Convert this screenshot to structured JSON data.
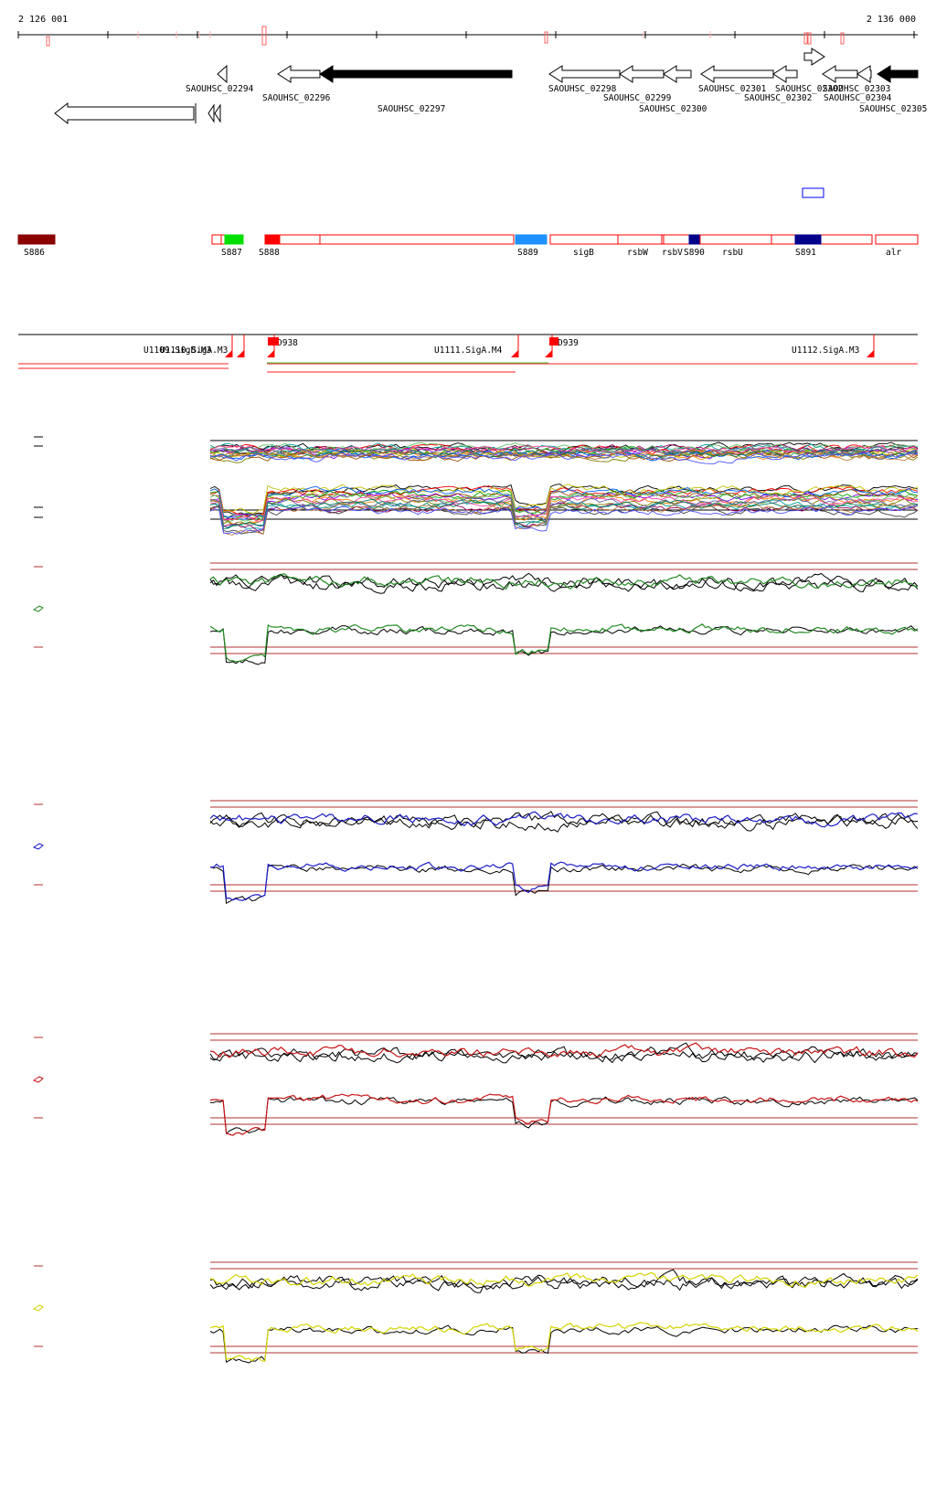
{
  "coordinates": {
    "start_label": "2 126 001",
    "end_label": "2 136 000"
  },
  "genes": [
    {
      "label": "SAOUHSC_02294",
      "filled": false
    },
    {
      "label": "SAOUHSC_02296",
      "filled": false
    },
    {
      "label": "SAOUHSC_02297",
      "filled": true
    },
    {
      "label": "SAOUHSC_02298",
      "filled": false
    },
    {
      "label": "SAOUHSC_02299",
      "filled": false
    },
    {
      "label": "SAOUHSC_02300",
      "filled": false
    },
    {
      "label": "SAOUHSC_02301",
      "filled": false
    },
    {
      "label": "SAOUHSC_02302",
      "filled": false
    },
    {
      "label": "SAOUHSC_02303",
      "filled": false
    },
    {
      "label": "SAOUHSC_02304",
      "filled": false
    },
    {
      "label": "SAOUHSC_02305",
      "filled": true
    },
    {
      "label": "SAOUHSC_02302",
      "filled": false
    }
  ],
  "segments": [
    {
      "label": "S886",
      "color": "#8b0000"
    },
    {
      "label": "S887",
      "color": "#00e000"
    },
    {
      "label": "S888",
      "color": "#ff0000"
    },
    {
      "label": "S889",
      "color": "#1e90ff"
    },
    {
      "label": "sigB",
      "color": "#ff0000"
    },
    {
      "label": "rsbW",
      "color": "#ff0000"
    },
    {
      "label": "rsbV",
      "color": "#ff0000"
    },
    {
      "label": "S890",
      "color": "#00008b"
    },
    {
      "label": "rsbU",
      "color": "#ff0000"
    },
    {
      "label": "S891",
      "color": "#00008b"
    },
    {
      "label": "alr",
      "color": "#ff0000"
    }
  ],
  "promoters": [
    {
      "label": "U1109.SigB.M3"
    },
    {
      "label": "U1110.SigA.M3"
    },
    {
      "label": "D938"
    },
    {
      "label": "U1111.SigA.M4"
    },
    {
      "label": "D939"
    },
    {
      "label": "U1112.SigA.M3"
    }
  ],
  "colors": {
    "up_feature": "#ff6060",
    "panel_multi": "multicolor",
    "panel_green": "#228b22",
    "panel_blue": "#1c1cc8",
    "panel_red": "#c81414",
    "panel_yellow": "#d4d400",
    "threshold": "#b03030"
  }
}
